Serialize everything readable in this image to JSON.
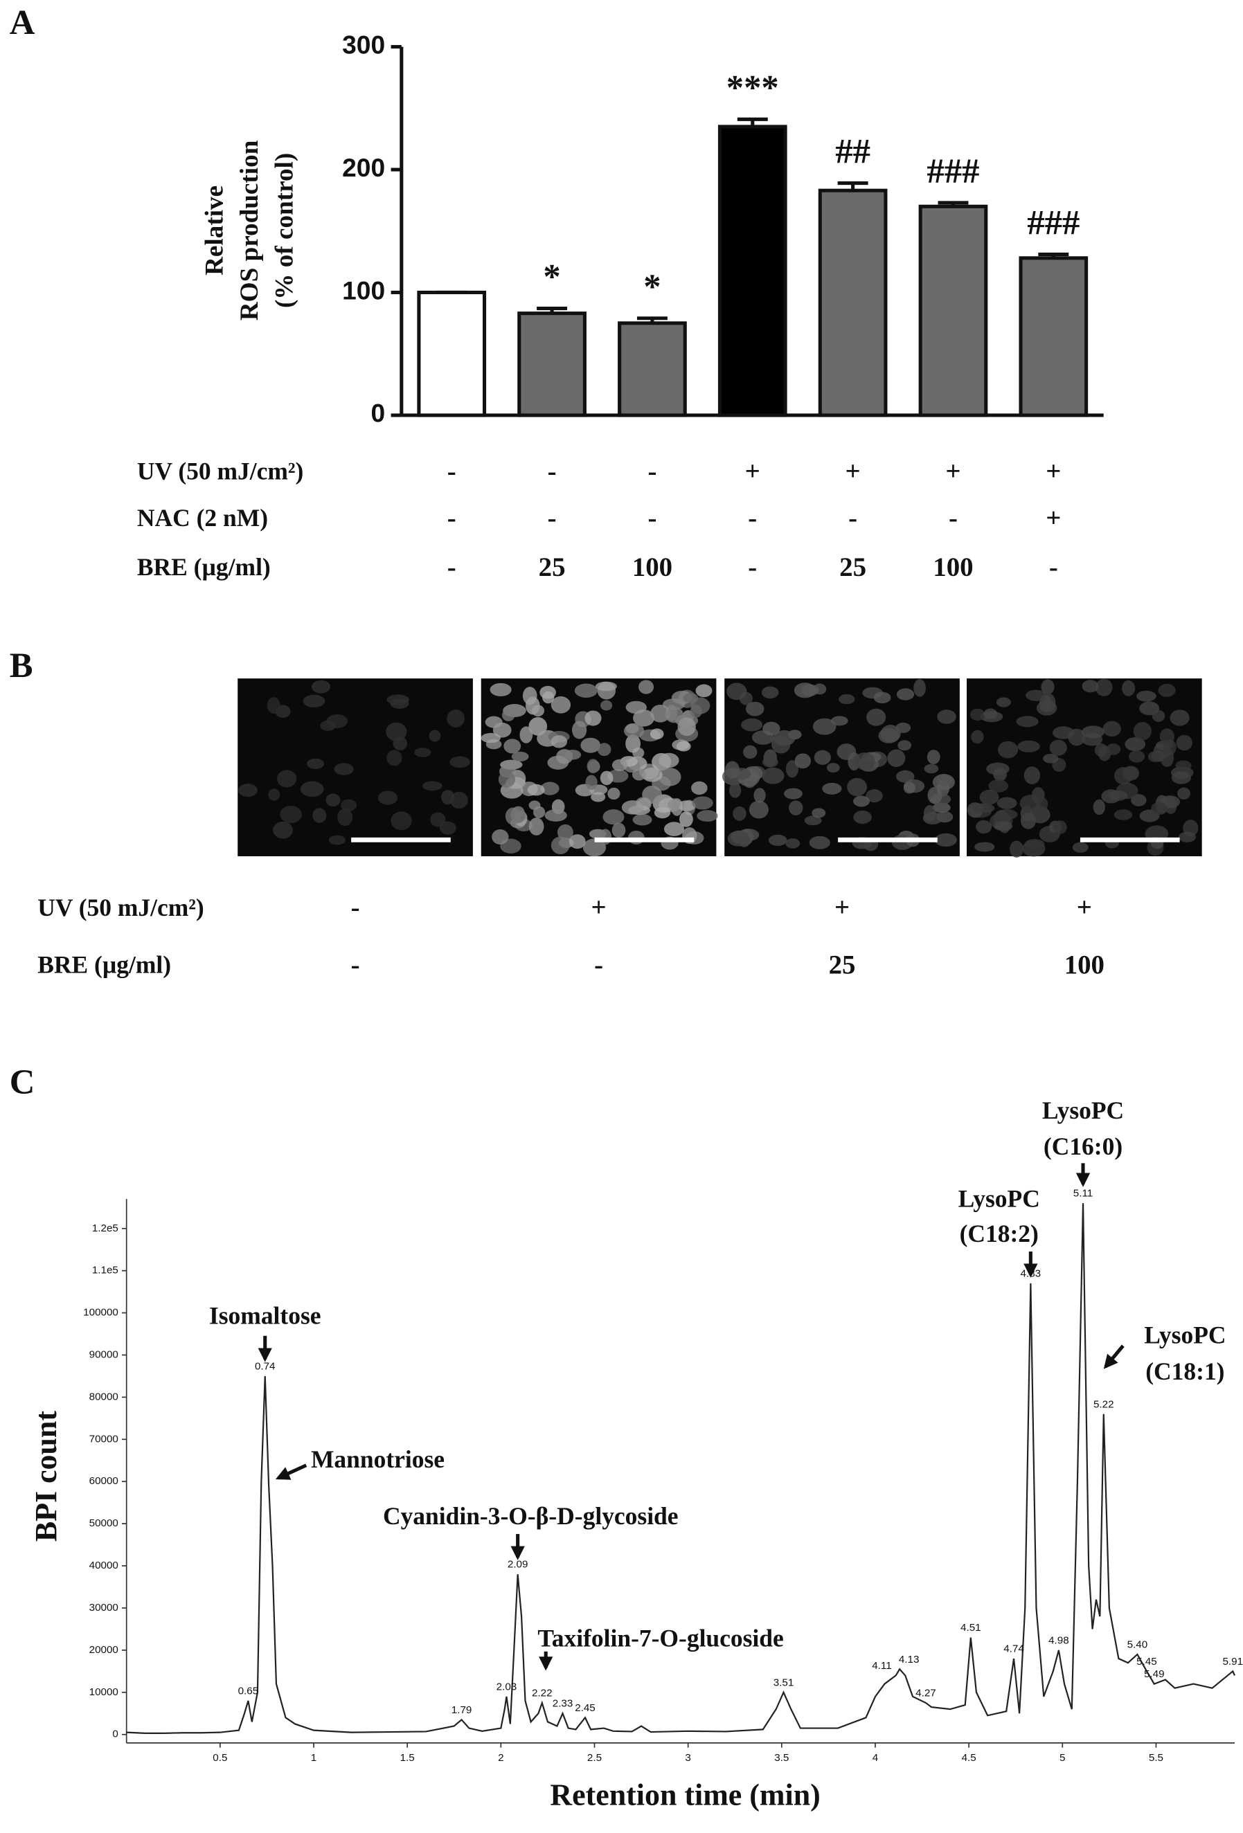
{
  "chart_data": [
    {
      "type": "bar",
      "panel_label": "A",
      "ylabel": [
        "Relative",
        "ROS production",
        "(% of control)"
      ],
      "ylim": [
        0,
        300
      ],
      "yticks": [
        0,
        100,
        200,
        300
      ],
      "values": [
        100,
        83,
        75,
        235,
        183,
        170,
        128
      ],
      "errors": [
        0,
        4,
        4,
        6,
        6,
        3,
        3
      ],
      "colors": [
        "#ffffff",
        "#6b6b6b",
        "#6b6b6b",
        "#000000",
        "#6b6b6b",
        "#6b6b6b",
        "#6b6b6b"
      ],
      "significance": [
        null,
        "*",
        "*",
        "***",
        "##",
        "###",
        "###"
      ],
      "treatments": [
        {
          "label": "UV (50 mJ/cm²)",
          "values": [
            "-",
            "-",
            "-",
            "+",
            "+",
            "+",
            "+"
          ]
        },
        {
          "label": "NAC (2 nM)",
          "values": [
            "-",
            "-",
            "-",
            "-",
            "-",
            "-",
            "+"
          ]
        },
        {
          "label": "BRE (µg/ml)",
          "values": [
            "-",
            "25",
            "100",
            "-",
            "25",
            "100",
            "-"
          ]
        }
      ]
    },
    {
      "type": "micrograph",
      "panel_label": "B",
      "treatments": [
        {
          "label": "UV (50 mJ/cm²)",
          "values": [
            "-",
            "+",
            "+",
            "+"
          ]
        },
        {
          "label": "BRE (µg/ml)",
          "values": [
            "-",
            "-",
            "25",
            "100"
          ]
        }
      ]
    },
    {
      "type": "line",
      "panel_label": "C",
      "xlabel": "Retention time (min)",
      "ylabel": "BPI count",
      "xlim": [
        0,
        5.92
      ],
      "ylim": [
        -2000,
        127000
      ],
      "xticks": [
        0.5,
        1,
        1.5,
        2,
        2.5,
        3,
        3.5,
        4,
        4.5,
        5,
        5.5
      ],
      "yticks": [
        0,
        10000,
        20000,
        30000,
        40000,
        50000,
        60000,
        70000,
        80000,
        90000,
        100000,
        {
          "value": 110000,
          "label": "1.1e5"
        },
        {
          "value": 120000,
          "label": "1.2e5"
        }
      ],
      "color": "#222222",
      "x": [
        0,
        0.1,
        0.2,
        0.3,
        0.4,
        0.5,
        0.6,
        0.63,
        0.65,
        0.67,
        0.7,
        0.72,
        0.74,
        0.76,
        0.78,
        0.8,
        0.85,
        0.9,
        1.0,
        1.2,
        1.4,
        1.6,
        1.75,
        1.79,
        1.83,
        1.9,
        2.0,
        2.02,
        2.03,
        2.05,
        2.07,
        2.09,
        2.11,
        2.13,
        2.16,
        2.2,
        2.22,
        2.25,
        2.3,
        2.33,
        2.36,
        2.4,
        2.45,
        2.48,
        2.55,
        2.6,
        2.7,
        2.75,
        2.8,
        3.0,
        3.2,
        3.4,
        3.47,
        3.51,
        3.55,
        3.6,
        3.8,
        3.95,
        4.0,
        4.05,
        4.11,
        4.13,
        4.16,
        4.2,
        4.27,
        4.3,
        4.4,
        4.48,
        4.51,
        4.54,
        4.6,
        4.7,
        4.74,
        4.77,
        4.8,
        4.83,
        4.86,
        4.9,
        4.95,
        4.98,
        5.01,
        5.05,
        5.08,
        5.11,
        5.14,
        5.16,
        5.18,
        5.2,
        5.22,
        5.25,
        5.3,
        5.35,
        5.4,
        5.45,
        5.49,
        5.55,
        5.6,
        5.7,
        5.8,
        5.91,
        5.92
      ],
      "values": [
        500,
        300,
        300,
        400,
        400,
        500,
        1000,
        5000,
        8000,
        3000,
        10000,
        60000,
        85000,
        59000,
        40000,
        12000,
        4000,
        2500,
        1000,
        500,
        600,
        700,
        2000,
        3500,
        1500,
        800,
        1500,
        6000,
        9000,
        2500,
        20000,
        38000,
        28000,
        8000,
        3000,
        5000,
        7500,
        3000,
        2000,
        5000,
        1500,
        1200,
        4000,
        1200,
        1500,
        800,
        700,
        2000,
        600,
        800,
        700,
        1200,
        6000,
        10000,
        6000,
        1500,
        1500,
        4000,
        9000,
        12000,
        14000,
        15500,
        14000,
        9000,
        7500,
        6500,
        6000,
        7000,
        23000,
        10000,
        4500,
        5500,
        18000,
        5000,
        30000,
        107000,
        30000,
        9000,
        15000,
        20000,
        12000,
        6000,
        60000,
        126000,
        40000,
        25000,
        32000,
        28000,
        76000,
        30000,
        18000,
        17000,
        19000,
        15000,
        12000,
        13000,
        11000,
        12000,
        11000,
        15000,
        14000
      ],
      "peak_x": [
        0.65,
        0.74,
        1.79,
        2.03,
        2.09,
        2.22,
        2.33,
        2.45,
        3.51,
        4.11,
        4.13,
        4.27,
        4.51,
        4.74,
        4.83,
        4.98,
        5.11,
        5.22,
        {
          "value": 5.4,
          "label": "5.40"
        },
        5.45,
        5.49,
        5.91
      ],
      "peak_y": [
        8000,
        85000,
        3500,
        9000,
        38000,
        7500,
        5000,
        4000,
        10000,
        14000,
        15500,
        7500,
        23000,
        18000,
        107000,
        20000,
        126000,
        76000,
        19000,
        15000,
        12000,
        15000
      ],
      "annotations": [
        {
          "text": [
            "Isomaltose"
          ],
          "x": 0.74,
          "y": 89000
        },
        {
          "text": [
            "Mannotriose"
          ],
          "x": 0.81,
          "y": 60800
        },
        {
          "text": [
            "Cyanidin-3-O-β-D-glycoside"
          ],
          "x": 2.09,
          "y": 42000
        },
        {
          "text": [
            "Taxifolin-7-O-glucoside"
          ],
          "x": 2.24,
          "y": 15800
        },
        {
          "text": [
            "LysoPC",
            "(C18:2)"
          ],
          "x": 4.83,
          "y": 109000
        },
        {
          "text": [
            "LysoPC",
            "(C16:0)"
          ],
          "x": 5.11,
          "y": 130500
        },
        {
          "text": [
            "LysoPC",
            "(C18:1)"
          ],
          "x": 5.23,
          "y": 87200
        }
      ]
    }
  ]
}
